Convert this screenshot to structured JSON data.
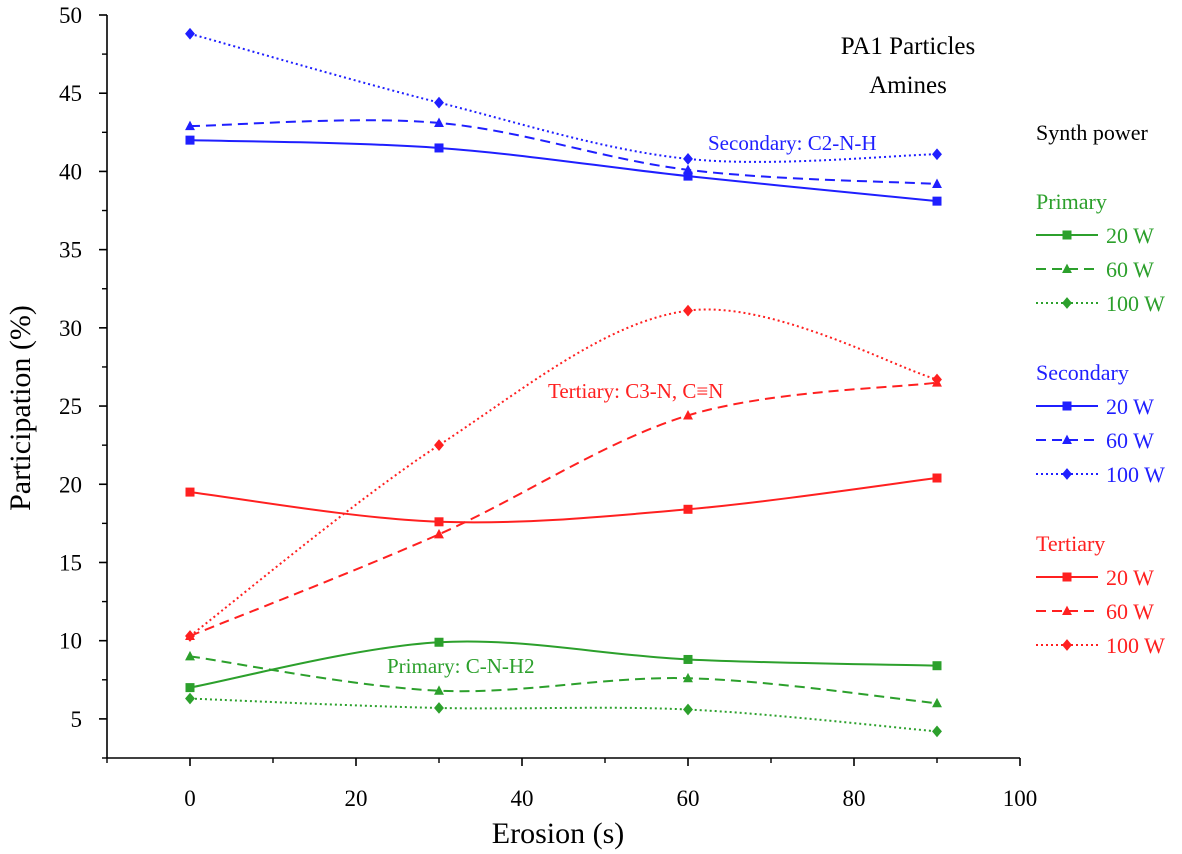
{
  "chart_data": {
    "type": "line",
    "title": "PA1 Particles",
    "subtitle": "Amines",
    "xlabel": "Erosion (s)",
    "ylabel": "Participation (%)",
    "xlim": [
      -10,
      100
    ],
    "ylim": [
      2.5,
      50
    ],
    "xticks": [
      0,
      20,
      40,
      60,
      80,
      100
    ],
    "yticks": [
      5,
      10,
      15,
      20,
      25,
      30,
      35,
      40,
      45,
      50
    ],
    "x": [
      0,
      30,
      60,
      90
    ],
    "grid": false,
    "legend_title": "Synth power",
    "legend_position": "right",
    "annotations": [
      {
        "text": "Secondary: C2-N-H",
        "group": "Secondary"
      },
      {
        "text": "Tertiary: C3-N, C≡N",
        "group": "Tertiary"
      },
      {
        "text": "Primary: C-N-H2",
        "group": "Primary"
      }
    ],
    "groups": [
      {
        "name": "Primary",
        "color": "#2ca02c",
        "series": [
          {
            "name": "20 W",
            "dash": "solid",
            "marker": "square",
            "values": [
              7.0,
              9.9,
              8.8,
              8.4
            ]
          },
          {
            "name": "60 W",
            "dash": "dashed",
            "marker": "triangle",
            "values": [
              9.0,
              6.8,
              7.6,
              6.0
            ]
          },
          {
            "name": "100 W",
            "dash": "dotted",
            "marker": "diamond",
            "values": [
              6.3,
              5.7,
              5.6,
              4.2
            ]
          }
        ]
      },
      {
        "name": "Secondary",
        "color": "#1f1fff",
        "series": [
          {
            "name": "20 W",
            "dash": "solid",
            "marker": "square",
            "values": [
              42.0,
              41.5,
              39.7,
              38.1
            ]
          },
          {
            "name": "60 W",
            "dash": "dashed",
            "marker": "triangle",
            "values": [
              42.9,
              43.1,
              40.1,
              39.2
            ]
          },
          {
            "name": "100 W",
            "dash": "dotted",
            "marker": "diamond",
            "values": [
              48.8,
              44.4,
              40.8,
              41.1
            ]
          }
        ]
      },
      {
        "name": "Tertiary",
        "color": "#ff2020",
        "series": [
          {
            "name": "20 W",
            "dash": "solid",
            "marker": "square",
            "values": [
              19.5,
              17.6,
              18.4,
              20.4
            ]
          },
          {
            "name": "60 W",
            "dash": "dashed",
            "marker": "triangle",
            "values": [
              10.3,
              16.8,
              24.4,
              26.5
            ]
          },
          {
            "name": "100 W",
            "dash": "dotted",
            "marker": "diamond",
            "values": [
              10.3,
              22.5,
              31.1,
              26.7
            ]
          }
        ]
      }
    ]
  }
}
